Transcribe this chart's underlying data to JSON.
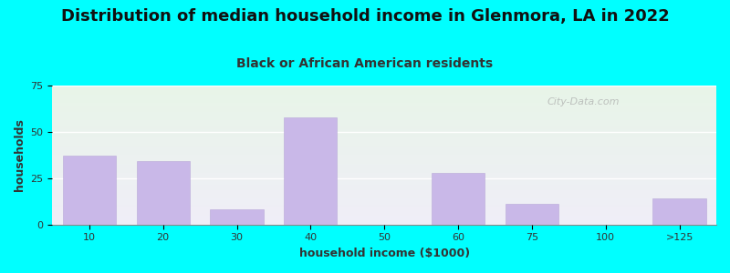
{
  "title": "Distribution of median household income in Glenmora, LA in 2022",
  "subtitle": "Black or African American residents",
  "xlabel": "household income ($1000)",
  "ylabel": "households",
  "background_color": "#00FFFF",
  "bar_color": "#c9b8e8",
  "bar_edge_color": "#b8a8d8",
  "categories": [
    "10",
    "20",
    "30",
    "40",
    "50",
    "60",
    "75",
    "100",
    ">125"
  ],
  "values": [
    37,
    34,
    8,
    58,
    0,
    28,
    11,
    0,
    14
  ],
  "ylim": [
    0,
    75
  ],
  "yticks": [
    0,
    25,
    50,
    75
  ],
  "title_fontsize": 13,
  "subtitle_fontsize": 10,
  "axis_label_fontsize": 9,
  "tick_fontsize": 8,
  "watermark": "City-Data.com",
  "subtitle_color": "#333333",
  "title_color": "#111111",
  "axis_label_color": "#333333"
}
